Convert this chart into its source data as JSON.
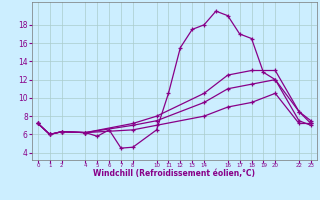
{
  "xlabel": "Windchill (Refroidissement éolien,°C)",
  "background_color": "#cceeff",
  "grid_color": "#aacccc",
  "line_color": "#880088",
  "xlim": [
    -0.5,
    23.5
  ],
  "ylim": [
    3.2,
    20.5
  ],
  "yticks": [
    4,
    6,
    8,
    10,
    12,
    14,
    16,
    18
  ],
  "xtick_positions": [
    0,
    1,
    2,
    4,
    5,
    6,
    7,
    8,
    10,
    11,
    12,
    13,
    14,
    16,
    17,
    18,
    19,
    20,
    22,
    23
  ],
  "xtick_labels": [
    "0",
    "1",
    "2",
    "4",
    "5",
    "6",
    "7",
    "8",
    "10",
    "11",
    "12",
    "13",
    "14",
    "16",
    "17",
    "18",
    "19",
    "20",
    "22",
    "23"
  ],
  "line1_x": [
    0,
    1,
    2,
    4,
    5,
    6,
    7,
    8,
    10,
    11,
    12,
    13,
    14,
    15,
    16,
    17,
    18,
    19,
    20,
    22,
    23
  ],
  "line1_y": [
    7.2,
    6.0,
    6.3,
    6.2,
    5.8,
    6.5,
    4.5,
    4.6,
    6.5,
    10.5,
    15.5,
    17.5,
    18.0,
    19.5,
    19.0,
    17.0,
    16.5,
    12.8,
    12.0,
    8.5,
    7.5
  ],
  "line2_x": [
    0,
    1,
    2,
    4,
    8,
    10,
    14,
    16,
    18,
    20,
    22,
    23
  ],
  "line2_y": [
    7.2,
    6.0,
    6.3,
    6.2,
    7.2,
    8.0,
    10.5,
    12.5,
    13.0,
    13.0,
    8.5,
    7.2
  ],
  "line3_x": [
    0,
    1,
    2,
    4,
    8,
    10,
    14,
    16,
    18,
    20,
    22,
    23
  ],
  "line3_y": [
    7.2,
    6.0,
    6.3,
    6.2,
    7.0,
    7.5,
    9.5,
    11.0,
    11.5,
    12.0,
    7.5,
    7.0
  ],
  "line4_x": [
    0,
    1,
    2,
    4,
    8,
    10,
    14,
    16,
    18,
    20,
    22,
    23
  ],
  "line4_y": [
    7.2,
    6.0,
    6.3,
    6.2,
    6.5,
    7.0,
    8.0,
    9.0,
    9.5,
    10.5,
    7.2,
    7.2
  ]
}
